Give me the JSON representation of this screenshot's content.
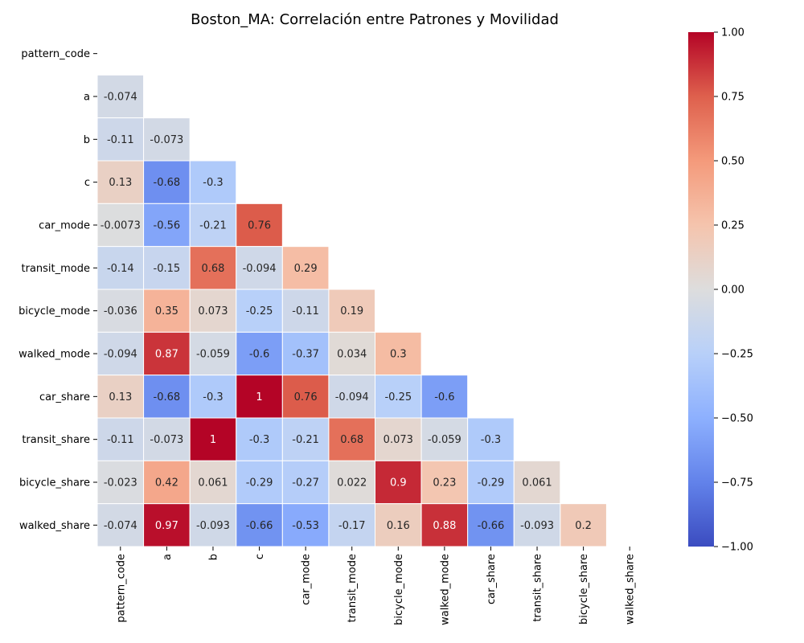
{
  "chart_data": {
    "type": "heatmap",
    "title": "Boston_MA: Correlación entre Patrones y Movilidad",
    "variables": [
      "pattern_code",
      "a",
      "b",
      "c",
      "car_mode",
      "transit_mode",
      "bicycle_mode",
      "walked_mode",
      "car_share",
      "transit_share",
      "bicycle_share",
      "walked_share"
    ],
    "mask": "upper-triangle-including-diagonal",
    "lower_triangle_values": [
      [],
      [
        -0.074
      ],
      [
        -0.11,
        -0.073
      ],
      [
        0.13,
        -0.68,
        -0.3
      ],
      [
        -0.0073,
        -0.56,
        -0.21,
        0.76
      ],
      [
        -0.14,
        -0.15,
        0.68,
        -0.094,
        0.29
      ],
      [
        -0.036,
        0.35,
        0.073,
        -0.25,
        -0.11,
        0.19
      ],
      [
        -0.094,
        0.87,
        -0.059,
        -0.6,
        -0.37,
        0.034,
        0.3
      ],
      [
        0.13,
        -0.68,
        -0.3,
        1,
        0.76,
        -0.094,
        -0.25,
        -0.6
      ],
      [
        -0.11,
        -0.073,
        1,
        -0.3,
        -0.21,
        0.68,
        0.073,
        -0.059,
        -0.3
      ],
      [
        -0.023,
        0.42,
        0.061,
        -0.29,
        -0.27,
        0.022,
        0.9,
        0.23,
        -0.29,
        0.061
      ],
      [
        -0.074,
        0.97,
        -0.093,
        -0.66,
        -0.53,
        -0.17,
        0.16,
        0.88,
        -0.66,
        -0.093,
        0.2
      ]
    ],
    "colormap": "coolwarm",
    "vmin": -1,
    "vmax": 1,
    "colorbar_ticks": [
      "1.00",
      "0.75",
      "0.50",
      "0.25",
      "0.00",
      "−0.25",
      "−0.50",
      "−0.75",
      "−1.00"
    ],
    "colorbar_tick_values": [
      1,
      0.75,
      0.5,
      0.25,
      0,
      -0.25,
      -0.5,
      -0.75,
      -1
    ]
  }
}
